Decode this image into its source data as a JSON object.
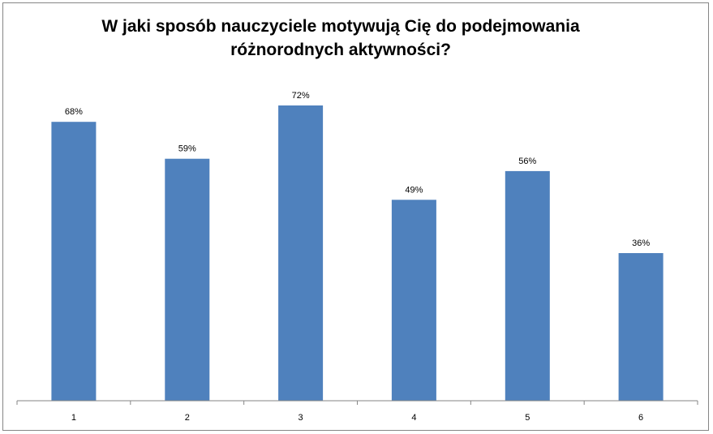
{
  "chart_data": {
    "type": "bar",
    "title_lines": [
      "W jaki sposób nauczyciele motywują Cię do podejmowania",
      "różnorodnych aktywności?"
    ],
    "categories": [
      "1",
      "2",
      "3",
      "4",
      "5",
      "6"
    ],
    "values": [
      68,
      59,
      72,
      49,
      56,
      36
    ],
    "data_labels": [
      "68%",
      "59%",
      "72%",
      "49%",
      "56%",
      "36%"
    ],
    "value_unit": "%",
    "xlabel": "",
    "ylabel": "",
    "ylim": [
      0,
      72
    ],
    "grid": false,
    "legend": "none",
    "bar_color": "#4F81BD"
  }
}
